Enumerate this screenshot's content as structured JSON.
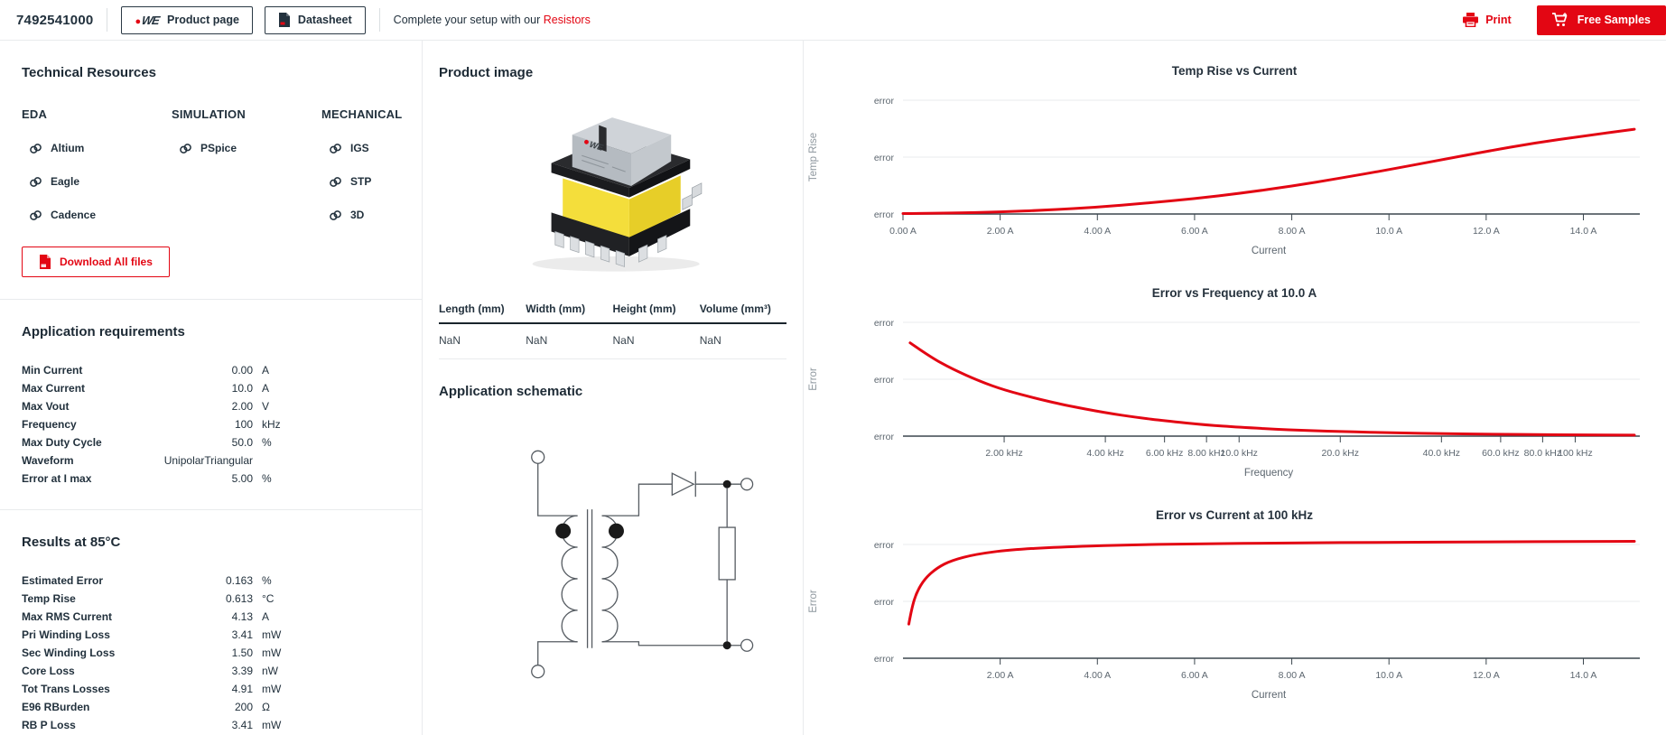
{
  "header": {
    "part_number": "7492541000",
    "product_page_label": "Product page",
    "datasheet_label": "Datasheet",
    "setup_prefix": "Complete your setup with our",
    "setup_link": "Resistors",
    "print_label": "Print",
    "free_samples_label": "Free Samples"
  },
  "technical_resources": {
    "title": "Technical Resources",
    "download_label": "Download All files",
    "groups": [
      {
        "name": "EDA",
        "items": [
          "Altium",
          "Eagle",
          "Cadence"
        ]
      },
      {
        "name": "SIMULATION",
        "items": [
          "PSpice"
        ]
      },
      {
        "name": "MECHANICAL",
        "items": [
          "IGS",
          "STP",
          "3D"
        ]
      }
    ]
  },
  "application_requirements": {
    "title": "Application requirements",
    "rows": [
      {
        "label": "Min Current",
        "value": "0.00",
        "unit": "A"
      },
      {
        "label": "Max Current",
        "value": "10.0",
        "unit": "A"
      },
      {
        "label": "Max Vout",
        "value": "2.00",
        "unit": "V"
      },
      {
        "label": "Frequency",
        "value": "100",
        "unit": "kHz"
      },
      {
        "label": "Max Duty Cycle",
        "value": "50.0",
        "unit": "%"
      },
      {
        "label": "Waveform",
        "value": "UnipolarTriangular",
        "unit": ""
      },
      {
        "label": "Error at I max",
        "value": "5.00",
        "unit": "%"
      }
    ]
  },
  "results": {
    "title": "Results at 85°C",
    "rows": [
      {
        "label": "Estimated Error",
        "value": "0.163",
        "unit": "%"
      },
      {
        "label": "Temp Rise",
        "value": "0.613",
        "unit": "°C"
      },
      {
        "label": "Max RMS Current",
        "value": "4.13",
        "unit": "A"
      },
      {
        "label": "Pri Winding Loss",
        "value": "3.41",
        "unit": "mW"
      },
      {
        "label": "Sec Winding Loss",
        "value": "1.50",
        "unit": "mW"
      },
      {
        "label": "Core Loss",
        "value": "3.39",
        "unit": "nW"
      },
      {
        "label": "Tot Trans Losses",
        "value": "4.91",
        "unit": "mW"
      },
      {
        "label": "E96 RBurden",
        "value": "200",
        "unit": "Ω"
      },
      {
        "label": "RB P Loss",
        "value": "3.41",
        "unit": "mW"
      }
    ]
  },
  "product_image": {
    "title": "Product image"
  },
  "dimensions_table": {
    "headers": [
      "Length (mm)",
      "Width (mm)",
      "Height (mm)",
      "Volume (mm³)"
    ],
    "values": [
      "NaN",
      "NaN",
      "NaN",
      "NaN"
    ]
  },
  "schematic": {
    "title": "Application schematic"
  },
  "chart_data": [
    {
      "type": "line",
      "title": "Temp Rise vs Current",
      "xlabel": "Current",
      "ylabel": "Temp Rise",
      "y_tick_labels": [
        "error",
        "error",
        "error"
      ],
      "x_scale": "linear",
      "x_min": 0,
      "x_max": 15.05,
      "x_ticks": [
        {
          "v": 0,
          "label": "0.00 A"
        },
        {
          "v": 2,
          "label": "2.00 A"
        },
        {
          "v": 4,
          "label": "4.00 A"
        },
        {
          "v": 6,
          "label": "6.00 A"
        },
        {
          "v": 8,
          "label": "8.00 A"
        },
        {
          "v": 10,
          "label": "10.0 A"
        },
        {
          "v": 12,
          "label": "12.0 A"
        },
        {
          "v": 14,
          "label": "14.0 A"
        }
      ],
      "line_color": "#e30613",
      "points": [
        [
          0,
          0.004
        ],
        [
          1,
          0.008
        ],
        [
          2,
          0.018
        ],
        [
          3,
          0.035
        ],
        [
          4,
          0.06
        ],
        [
          5,
          0.095
        ],
        [
          6,
          0.135
        ],
        [
          7,
          0.185
        ],
        [
          8,
          0.245
        ],
        [
          9,
          0.315
        ],
        [
          10,
          0.39
        ],
        [
          11,
          0.47
        ],
        [
          12,
          0.55
        ],
        [
          13,
          0.625
        ],
        [
          14,
          0.685
        ],
        [
          15.05,
          0.745
        ]
      ]
    },
    {
      "type": "line",
      "title": "Error vs Frequency at 10.0 A",
      "xlabel": "Frequency",
      "ylabel": "Error",
      "y_tick_labels": [
        "error",
        "error",
        "error"
      ],
      "x_scale": "log",
      "x_min": 1000,
      "x_max": 150000,
      "x_ticks": [
        {
          "v": 2000,
          "label": "2.00 kHz"
        },
        {
          "v": 4000,
          "label": "4.00 kHz"
        },
        {
          "v": 6000,
          "label": "6.00 kHz"
        },
        {
          "v": 8000,
          "label": "8.00 kHz"
        },
        {
          "v": 10000,
          "label": "10.0 kHz"
        },
        {
          "v": 20000,
          "label": "20.0 kHz"
        },
        {
          "v": 40000,
          "label": "40.0 kHz"
        },
        {
          "v": 60000,
          "label": "60.0 kHz"
        },
        {
          "v": 80000,
          "label": "80.0 kHz"
        },
        {
          "v": 100000,
          "label": "100 kHz"
        }
      ],
      "line_color": "#e30613",
      "points": [
        [
          1050,
          0.82
        ],
        [
          1200,
          0.7
        ],
        [
          1400,
          0.59
        ],
        [
          1700,
          0.48
        ],
        [
          2000,
          0.405
        ],
        [
          2500,
          0.33
        ],
        [
          3000,
          0.275
        ],
        [
          4000,
          0.205
        ],
        [
          5000,
          0.163
        ],
        [
          6000,
          0.135
        ],
        [
          8000,
          0.098
        ],
        [
          10000,
          0.078
        ],
        [
          14000,
          0.055
        ],
        [
          20000,
          0.04
        ],
        [
          30000,
          0.028
        ],
        [
          40000,
          0.022
        ],
        [
          60000,
          0.016
        ],
        [
          80000,
          0.013
        ],
        [
          100000,
          0.011
        ],
        [
          150000,
          0.009
        ]
      ]
    },
    {
      "type": "line",
      "title": "Error vs Current at 100 kHz",
      "xlabel": "Current",
      "ylabel": "Error",
      "y_tick_labels": [
        "error",
        "error",
        "error"
      ],
      "x_scale": "linear",
      "x_min": 0,
      "x_max": 15.05,
      "x_ticks": [
        {
          "v": 2,
          "label": "2.00 A"
        },
        {
          "v": 4,
          "label": "4.00 A"
        },
        {
          "v": 6,
          "label": "6.00 A"
        },
        {
          "v": 8,
          "label": "8.00 A"
        },
        {
          "v": 10,
          "label": "10.0 A"
        },
        {
          "v": 12,
          "label": "12.0 A"
        },
        {
          "v": 14,
          "label": "14.0 A"
        }
      ],
      "line_color": "#e30613",
      "points": [
        [
          0.12,
          0.3
        ],
        [
          0.18,
          0.44
        ],
        [
          0.28,
          0.58
        ],
        [
          0.45,
          0.7
        ],
        [
          0.7,
          0.795
        ],
        [
          1.0,
          0.86
        ],
        [
          1.5,
          0.915
        ],
        [
          2.2,
          0.953
        ],
        [
          3.2,
          0.978
        ],
        [
          4.5,
          0.995
        ],
        [
          6,
          1.006
        ],
        [
          8,
          1.014
        ],
        [
          10,
          1.019
        ],
        [
          12,
          1.023
        ],
        [
          14,
          1.026
        ],
        [
          15.05,
          1.028
        ]
      ]
    }
  ],
  "colors": {
    "accent_red": "#e30613",
    "dark_text": "#22313d",
    "grid_line": "#e9ebed",
    "axis_line": "#3c474f",
    "tick_text": "#5c666f",
    "muted_text": "#8e979e"
  }
}
